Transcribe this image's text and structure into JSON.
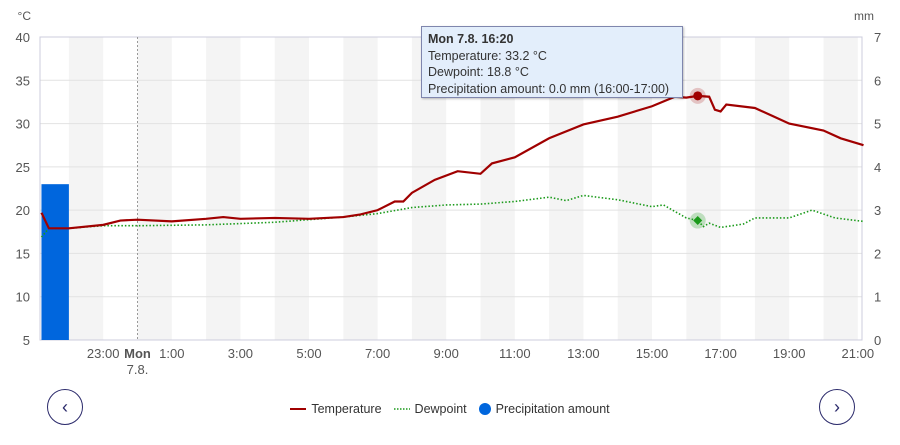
{
  "chart_data": {
    "type": "line",
    "x_range": [
      "6.8. 21:12",
      "7.8. 21:10"
    ],
    "x_ticks": [
      "23:00",
      "Mon",
      "1:00",
      "3:00",
      "5:00",
      "7:00",
      "9:00",
      "11:00",
      "13:00",
      "15:00",
      "17:00",
      "19:00",
      "21:00"
    ],
    "x_tick_sub": "7.8.",
    "y_left": {
      "unit": "°C",
      "lim": [
        5,
        40
      ],
      "ticks": [
        "5",
        "10",
        "15",
        "20",
        "25",
        "30",
        "35",
        "40"
      ]
    },
    "y_right": {
      "unit": "mm",
      "lim": [
        0,
        7
      ],
      "ticks": [
        "0",
        "1",
        "2",
        "3",
        "4",
        "5",
        "6",
        "7"
      ]
    },
    "grid": true,
    "legend_position": "bottom",
    "series": [
      {
        "name": "Temperature",
        "type": "line",
        "color": "#a00000",
        "points": [
          [
            "6.8. 21:12",
            19.7
          ],
          [
            "6.8. 21:25",
            17.9
          ],
          [
            "6.8. 22:00",
            17.9
          ],
          [
            "6.8. 23:00",
            18.3
          ],
          [
            "6.8. 23:30",
            18.8
          ],
          [
            "7.8. 00:00",
            18.9
          ],
          [
            "7.8. 01:00",
            18.7
          ],
          [
            "7.8. 02:00",
            19.0
          ],
          [
            "7.8. 02:30",
            19.2
          ],
          [
            "7.8. 03:00",
            19.0
          ],
          [
            "7.8. 04:00",
            19.1
          ],
          [
            "7.8. 05:00",
            19.0
          ],
          [
            "7.8. 06:00",
            19.2
          ],
          [
            "7.8. 06:30",
            19.5
          ],
          [
            "7.8. 07:00",
            20.0
          ],
          [
            "7.8. 07:30",
            21.0
          ],
          [
            "7.8. 07:45",
            21.0
          ],
          [
            "7.8. 08:00",
            22.0
          ],
          [
            "7.8. 08:40",
            23.5
          ],
          [
            "7.8. 09:20",
            24.5
          ],
          [
            "7.8. 10:00",
            24.2
          ],
          [
            "7.8. 10:20",
            25.4
          ],
          [
            "7.8. 11:00",
            26.1
          ],
          [
            "7.8. 12:00",
            28.3
          ],
          [
            "7.8. 13:00",
            29.9
          ],
          [
            "7.8. 14:00",
            30.8
          ],
          [
            "7.8. 15:00",
            32.0
          ],
          [
            "7.8. 15:40",
            33.1
          ],
          [
            "7.8. 16:00",
            33.0
          ],
          [
            "7.8. 16:20",
            33.2
          ],
          [
            "7.8. 16:40",
            33.1
          ],
          [
            "7.8. 16:50",
            31.6
          ],
          [
            "7.8. 17:00",
            31.4
          ],
          [
            "7.8. 17:10",
            32.2
          ],
          [
            "7.8. 18:00",
            31.8
          ],
          [
            "7.8. 18:30",
            30.9
          ],
          [
            "7.8. 19:00",
            30.0
          ],
          [
            "7.8. 20:00",
            29.2
          ],
          [
            "7.8. 20:30",
            28.3
          ],
          [
            "7.8. 21:10",
            27.5
          ]
        ]
      },
      {
        "name": "Dewpoint",
        "type": "line",
        "style": "dotted",
        "color": "#1a9a1a",
        "points": [
          [
            "6.8. 21:12",
            16.9
          ],
          [
            "6.8. 21:25",
            17.9
          ],
          [
            "6.8. 22:00",
            17.9
          ],
          [
            "6.8. 23:00",
            18.2
          ],
          [
            "7.8. 00:00",
            18.2
          ],
          [
            "7.8. 02:00",
            18.3
          ],
          [
            "7.8. 04:00",
            18.6
          ],
          [
            "7.8. 06:00",
            19.2
          ],
          [
            "7.8. 07:00",
            19.6
          ],
          [
            "7.8. 08:00",
            20.3
          ],
          [
            "7.8. 09:00",
            20.6
          ],
          [
            "7.8. 10:00",
            20.7
          ],
          [
            "7.8. 11:00",
            21.0
          ],
          [
            "7.8. 12:00",
            21.5
          ],
          [
            "7.8. 12:30",
            21.1
          ],
          [
            "7.8. 13:00",
            21.7
          ],
          [
            "7.8. 14:00",
            21.2
          ],
          [
            "7.8. 15:00",
            20.4
          ],
          [
            "7.8. 15:20",
            20.6
          ],
          [
            "7.8. 16:00",
            19.1
          ],
          [
            "7.8. 16:20",
            18.8
          ],
          [
            "7.8. 16:30",
            18.1
          ],
          [
            "7.8. 16:40",
            18.5
          ],
          [
            "7.8. 17:00",
            18.0
          ],
          [
            "7.8. 17:40",
            18.4
          ],
          [
            "7.8. 18:00",
            19.1
          ],
          [
            "7.8. 19:00",
            19.1
          ],
          [
            "7.8. 19:40",
            20.0
          ],
          [
            "7.8. 20:20",
            19.1
          ],
          [
            "7.8. 21:10",
            18.7
          ]
        ]
      },
      {
        "name": "Precipitation amount",
        "type": "bar",
        "axis": "right",
        "color": "#0066dd",
        "bars": [
          {
            "from": "6.8. 21:12",
            "to": "6.8. 22:00",
            "value": 3.6
          }
        ]
      }
    ],
    "highlight": "7.8. 16:20"
  },
  "tooltip": {
    "title": "Mon 7.8. 16:20",
    "lines": [
      "Temperature: 33.2 °C",
      "Dewpoint: 18.8 °C",
      "Precipitation amount: 0.0 mm (16:00-17:00)"
    ]
  },
  "nav": {
    "prev_icon": "chevron-left-icon",
    "next_icon": "chevron-right-icon",
    "prev_glyph": "‹",
    "next_glyph": "›"
  }
}
